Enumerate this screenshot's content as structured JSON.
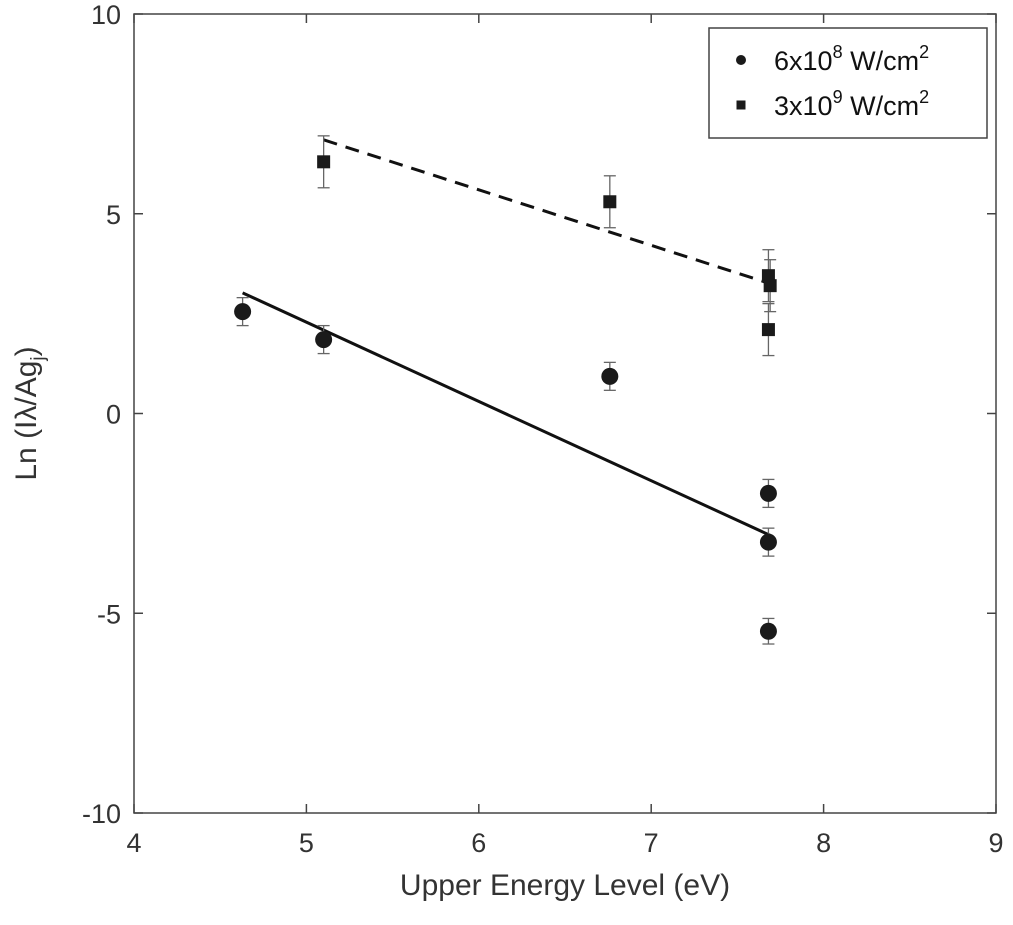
{
  "chart_data": {
    "type": "scatter",
    "xlabel": "Upper Energy Level (eV)",
    "ylabel": "Ln (Iλ/Ag",
    "ylabel_subscript": "j",
    "ylabel_close": ")",
    "xlim": [
      4,
      9
    ],
    "ylim": [
      -10,
      10
    ],
    "xticks": [
      4,
      5,
      6,
      7,
      8,
      9
    ],
    "yticks": [
      -10,
      -5,
      0,
      5,
      10
    ],
    "grid": false,
    "box": true,
    "legend_position": "top-right",
    "series": [
      {
        "name": "6x10",
        "name_sup": "8",
        "name_unit": " W/cm",
        "name_unit_sup": "2",
        "marker": "circle",
        "color": "#1a1a1a",
        "points": [
          {
            "x": 4.63,
            "y": 2.55,
            "err": 0.35
          },
          {
            "x": 5.1,
            "y": 1.85,
            "err": 0.35
          },
          {
            "x": 6.76,
            "y": 0.93,
            "err": 0.35
          },
          {
            "x": 7.68,
            "y": -2.0,
            "err": 0.35
          },
          {
            "x": 7.68,
            "y": -3.22,
            "err": 0.35
          },
          {
            "x": 7.68,
            "y": -5.45,
            "err": 0.32
          }
        ],
        "fit": {
          "style": "solid",
          "from": [
            4.63,
            3.02
          ],
          "to": [
            7.69,
            -3.05
          ]
        }
      },
      {
        "name": "3x10",
        "name_sup": "9",
        "name_unit": " W/cm",
        "name_unit_sup": "2",
        "marker": "square",
        "color": "#1a1a1a",
        "points": [
          {
            "x": 5.1,
            "y": 6.3,
            "err": 0.65
          },
          {
            "x": 6.76,
            "y": 5.3,
            "err": 0.65
          },
          {
            "x": 7.68,
            "y": 3.45,
            "err": 0.65
          },
          {
            "x": 7.69,
            "y": 3.2,
            "err": 0.65
          },
          {
            "x": 7.68,
            "y": 2.1,
            "err": 0.65
          }
        ],
        "fit": {
          "style": "dashed",
          "from": [
            5.1,
            6.85
          ],
          "to": [
            7.69,
            3.25
          ]
        }
      }
    ]
  }
}
